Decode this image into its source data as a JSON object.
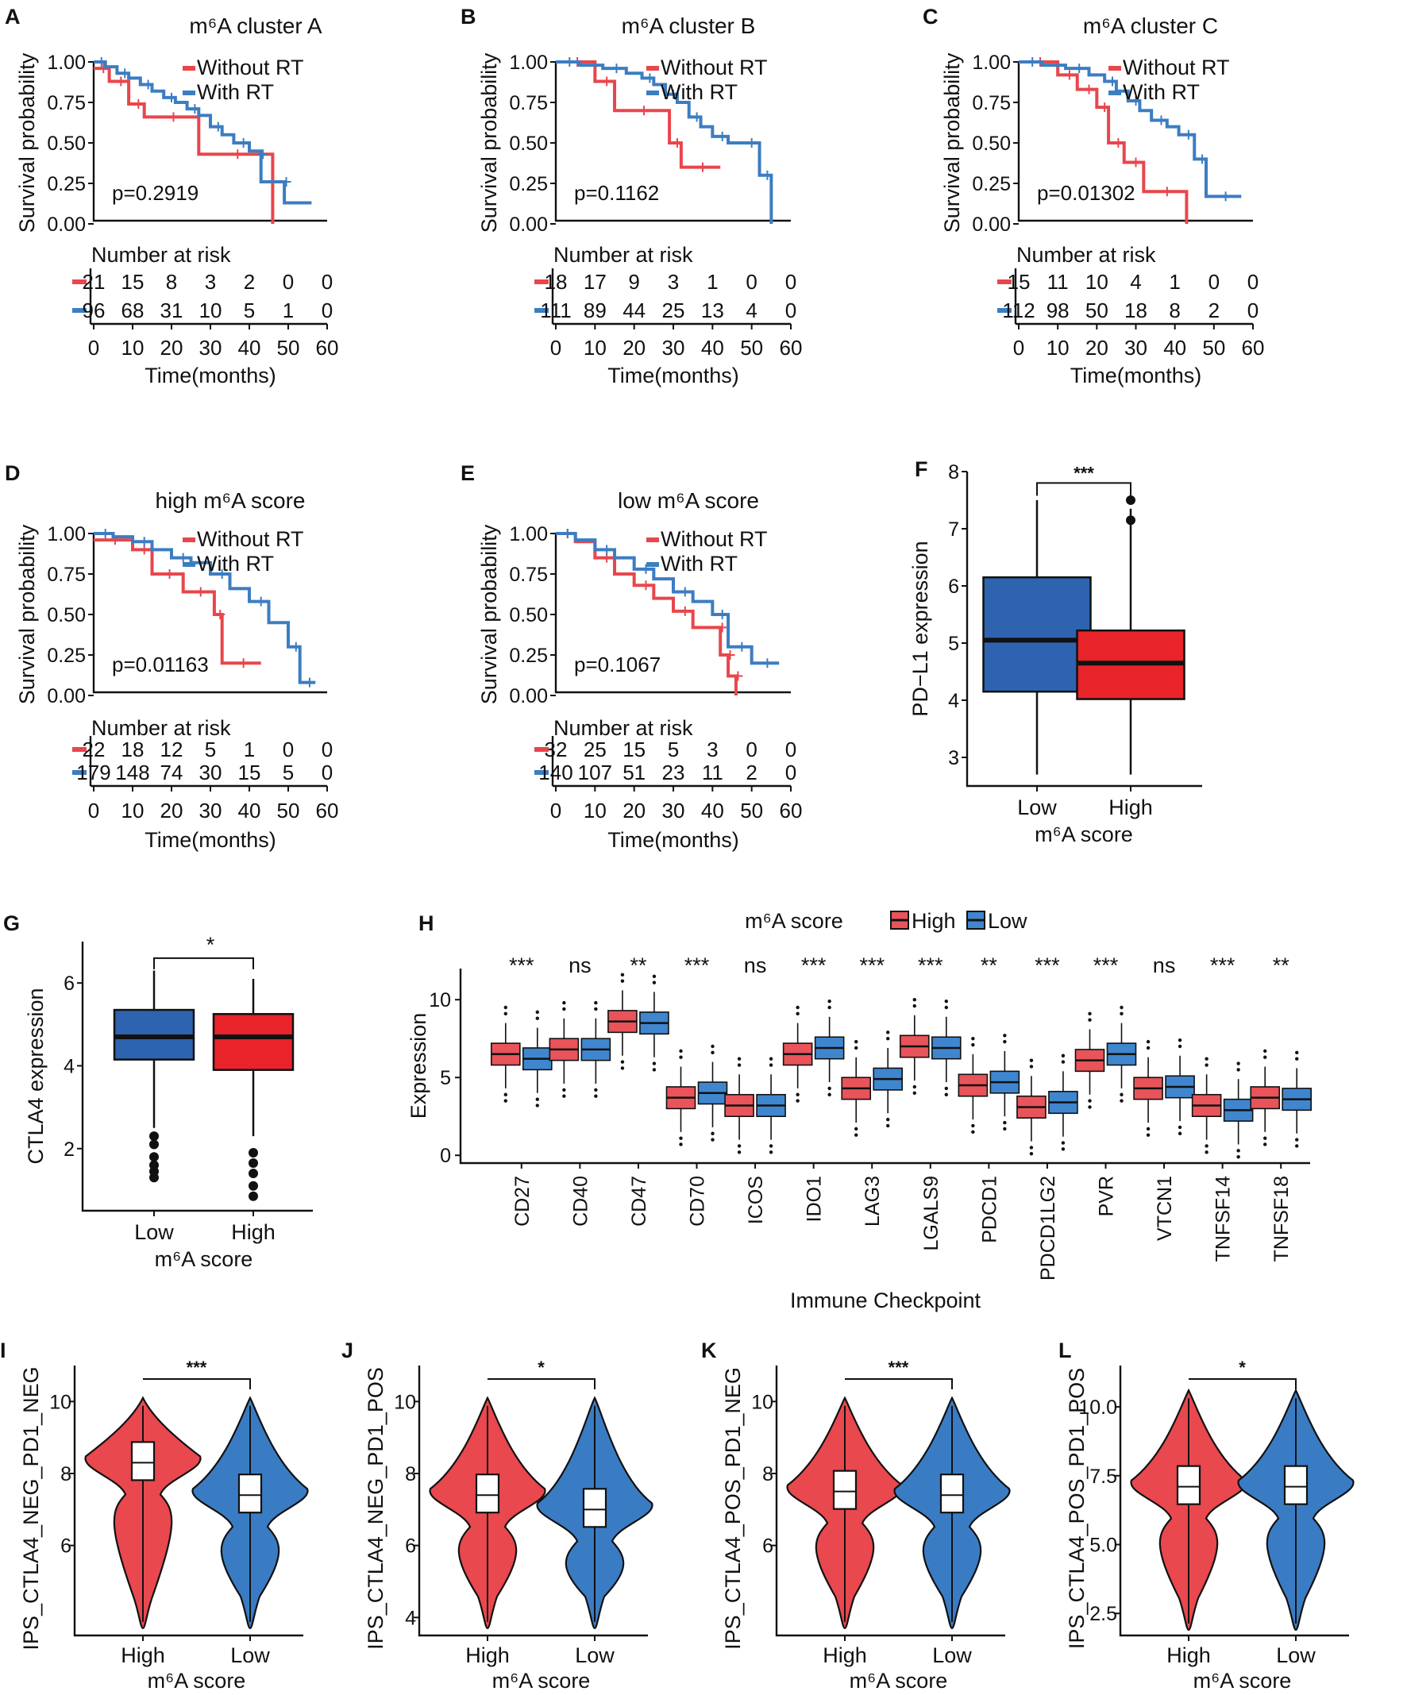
{
  "figure": {
    "colors": {
      "without_rt": "#E8464C",
      "with_rt": "#3C7DC2",
      "box_low": "#2E63B0",
      "box_high": "#E8232A",
      "violin_high": "#E8484E",
      "violin_low": "#3A7CC4",
      "box_hi_h": "#E8545A",
      "box_lo_h": "#3F86CF"
    }
  },
  "chart_data": [
    {
      "panel": "A",
      "type": "line",
      "title": "m⁶A cluster A",
      "ylabel": "Survival probability",
      "xlabel": "Time(months)",
      "yticks": [
        "0.00",
        "0.25",
        "0.50",
        "0.75",
        "1.00"
      ],
      "xticks": [
        "0",
        "10",
        "20",
        "30",
        "40",
        "50",
        "60"
      ],
      "ylim": [
        0,
        1
      ],
      "xlim": [
        0,
        60
      ],
      "pvalue": "p=0.2919",
      "legend": [
        "Without RT",
        "With RT"
      ],
      "risk_title": "Number at risk",
      "risk": [
        [
          "21",
          "15",
          "8",
          "3",
          "2",
          "0",
          "0"
        ],
        [
          "96",
          "68",
          "31",
          "10",
          "5",
          "1",
          "0"
        ]
      ],
      "series": [
        {
          "name": "Without RT",
          "x": [
            0,
            4,
            4,
            9,
            9,
            13,
            13,
            27,
            27,
            46,
            46
          ],
          "y": [
            0.96,
            0.96,
            0.88,
            0.88,
            0.74,
            0.74,
            0.66,
            0.66,
            0.43,
            0.43,
            0
          ]
        },
        {
          "name": "With RT",
          "x": [
            0,
            3,
            6,
            9,
            12,
            15,
            18,
            21,
            24,
            27,
            30,
            33,
            36,
            40,
            43,
            43,
            49,
            49,
            56
          ],
          "y": [
            1,
            0.97,
            0.93,
            0.9,
            0.86,
            0.82,
            0.78,
            0.75,
            0.71,
            0.67,
            0.6,
            0.55,
            0.5,
            0.45,
            0.43,
            0.26,
            0.26,
            0.13,
            0.13
          ]
        }
      ]
    },
    {
      "panel": "B",
      "type": "line",
      "title": "m⁶A cluster B",
      "ylabel": "Survival probability",
      "xlabel": "Time(months)",
      "yticks": [
        "0.00",
        "0.25",
        "0.50",
        "0.75",
        "1.00"
      ],
      "xticks": [
        "0",
        "10",
        "20",
        "30",
        "40",
        "50",
        "60"
      ],
      "ylim": [
        0,
        1
      ],
      "xlim": [
        0,
        60
      ],
      "pvalue": "p=0.1162",
      "legend": [
        "Without RT",
        "With RT"
      ],
      "risk_title": "Number at risk",
      "risk": [
        [
          "18",
          "17",
          "9",
          "3",
          "1",
          "0",
          "0"
        ],
        [
          "111",
          "89",
          "44",
          "25",
          "13",
          "4",
          "0"
        ]
      ],
      "series": [
        {
          "name": "Without RT",
          "x": [
            0,
            10,
            10,
            15,
            15,
            29,
            29,
            32,
            32,
            42
          ],
          "y": [
            1,
            1,
            0.88,
            0.88,
            0.7,
            0.7,
            0.5,
            0.5,
            0.35,
            0.35
          ]
        },
        {
          "name": "With RT",
          "x": [
            0,
            6,
            12,
            18,
            22,
            25,
            28,
            31,
            34,
            37,
            40,
            44,
            47,
            52,
            52,
            55,
            55
          ],
          "y": [
            1,
            0.98,
            0.96,
            0.93,
            0.9,
            0.86,
            0.8,
            0.75,
            0.66,
            0.6,
            0.54,
            0.5,
            0.5,
            0.5,
            0.3,
            0.3,
            0
          ]
        }
      ]
    },
    {
      "panel": "C",
      "type": "line",
      "title": "m⁶A cluster C",
      "ylabel": "Survival probability",
      "xlabel": "Time(months)",
      "yticks": [
        "0.00",
        "0.25",
        "0.50",
        "0.75",
        "1.00"
      ],
      "xticks": [
        "0",
        "10",
        "20",
        "30",
        "40",
        "50",
        "60"
      ],
      "ylim": [
        0,
        1
      ],
      "xlim": [
        0,
        60
      ],
      "pvalue": "p=0.01302",
      "legend": [
        "Without RT",
        "With RT"
      ],
      "risk_title": "Number at risk",
      "risk": [
        [
          "15",
          "11",
          "10",
          "4",
          "1",
          "0",
          "0"
        ],
        [
          "112",
          "98",
          "50",
          "18",
          "8",
          "2",
          "0"
        ]
      ],
      "series": [
        {
          "name": "Without RT",
          "x": [
            0,
            10,
            10,
            15,
            15,
            20,
            20,
            23,
            23,
            27,
            27,
            32,
            32,
            43,
            43
          ],
          "y": [
            1,
            1,
            0.92,
            0.92,
            0.83,
            0.83,
            0.72,
            0.72,
            0.5,
            0.5,
            0.38,
            0.38,
            0.2,
            0.2,
            0
          ]
        },
        {
          "name": "With RT",
          "x": [
            0,
            6,
            12,
            18,
            22,
            25,
            28,
            31,
            34,
            38,
            41,
            45,
            45,
            48,
            48,
            57
          ],
          "y": [
            1,
            0.98,
            0.96,
            0.92,
            0.88,
            0.82,
            0.76,
            0.7,
            0.64,
            0.6,
            0.55,
            0.5,
            0.4,
            0.4,
            0.17,
            0.17
          ]
        }
      ]
    },
    {
      "panel": "D",
      "type": "line",
      "title": "high m⁶A score",
      "ylabel": "Survival probability",
      "xlabel": "Time(months)",
      "yticks": [
        "0.00",
        "0.25",
        "0.50",
        "0.75",
        "1.00"
      ],
      "xticks": [
        "0",
        "10",
        "20",
        "30",
        "40",
        "50",
        "60"
      ],
      "ylim": [
        0,
        1
      ],
      "xlim": [
        0,
        60
      ],
      "pvalue": "p=0.01163",
      "legend": [
        "Without RT",
        "With RT"
      ],
      "risk_title": "Number at risk",
      "risk": [
        [
          "22",
          "18",
          "12",
          "5",
          "1",
          "0",
          "0"
        ],
        [
          "179",
          "148",
          "74",
          "30",
          "15",
          "5",
          "0"
        ]
      ],
      "series": [
        {
          "name": "Without RT",
          "x": [
            0,
            10,
            10,
            15,
            15,
            23,
            23,
            31,
            31,
            33,
            33,
            43
          ],
          "y": [
            0.96,
            0.96,
            0.9,
            0.9,
            0.75,
            0.75,
            0.64,
            0.64,
            0.5,
            0.5,
            0.2,
            0.2
          ]
        },
        {
          "name": "With RT",
          "x": [
            0,
            5,
            10,
            15,
            20,
            25,
            30,
            35,
            40,
            45,
            50,
            53,
            53,
            57
          ],
          "y": [
            1,
            0.98,
            0.95,
            0.9,
            0.85,
            0.82,
            0.75,
            0.66,
            0.58,
            0.45,
            0.3,
            0.2,
            0.08,
            0.08
          ]
        }
      ]
    },
    {
      "panel": "E",
      "type": "line",
      "title": "low m⁶A score",
      "ylabel": "Survival probability",
      "xlabel": "Time(months)",
      "yticks": [
        "0.00",
        "0.25",
        "0.50",
        "0.75",
        "1.00"
      ],
      "xticks": [
        "0",
        "10",
        "20",
        "30",
        "40",
        "50",
        "60"
      ],
      "ylim": [
        0,
        1
      ],
      "xlim": [
        0,
        60
      ],
      "pvalue": "p=0.1067",
      "legend": [
        "Without RT",
        "With RT"
      ],
      "risk_title": "Number at risk",
      "risk": [
        [
          "32",
          "25",
          "15",
          "5",
          "3",
          "0",
          "0"
        ],
        [
          "140",
          "107",
          "51",
          "23",
          "11",
          "2",
          "0"
        ]
      ],
      "series": [
        {
          "name": "Without RT",
          "x": [
            0,
            5,
            10,
            15,
            20,
            25,
            30,
            35,
            42,
            42,
            44,
            44,
            46,
            46
          ],
          "y": [
            1,
            0.95,
            0.85,
            0.75,
            0.68,
            0.6,
            0.52,
            0.42,
            0.42,
            0.25,
            0.25,
            0.12,
            0.12,
            0
          ]
        },
        {
          "name": "With RT",
          "x": [
            0,
            5,
            10,
            15,
            20,
            25,
            30,
            35,
            40,
            44,
            44,
            50,
            50,
            57
          ],
          "y": [
            1,
            0.96,
            0.9,
            0.85,
            0.78,
            0.72,
            0.64,
            0.58,
            0.5,
            0.4,
            0.3,
            0.3,
            0.2,
            0.2
          ]
        }
      ]
    },
    {
      "panel": "F",
      "type": "box",
      "ylabel": "PD−L1 expression",
      "xlabel": "m⁶A score",
      "yticks": [
        "3",
        "4",
        "5",
        "6",
        "7",
        "8"
      ],
      "ylim": [
        2.5,
        8
      ],
      "categories": [
        "Low",
        "High"
      ],
      "significance": "***",
      "boxes": [
        {
          "name": "Low",
          "min": 2.7,
          "q1": 4.15,
          "median": 5.05,
          "q3": 6.15,
          "max": 7.5,
          "outliers": []
        },
        {
          "name": "High",
          "min": 2.7,
          "q1": 4.02,
          "median": 4.65,
          "q3": 5.22,
          "max": 7.35,
          "outliers": [
            7.15,
            7.5
          ]
        }
      ]
    },
    {
      "panel": "G",
      "type": "box",
      "ylabel": "CTLA4 expression",
      "xlabel": "m⁶A score",
      "yticks": [
        "2",
        "4",
        "6"
      ],
      "ylim": [
        0.5,
        7
      ],
      "categories": [
        "Low",
        "High"
      ],
      "significance": "*",
      "boxes": [
        {
          "name": "Low",
          "min": 2.5,
          "q1": 4.15,
          "median": 4.7,
          "q3": 5.35,
          "max": 6.3,
          "outliers": [
            2.3,
            2.1,
            1.8,
            1.6,
            1.45,
            1.3
          ]
        },
        {
          "name": "High",
          "min": 2.3,
          "q1": 3.9,
          "median": 4.7,
          "q3": 5.25,
          "max": 6.1,
          "outliers": [
            1.9,
            1.65,
            1.4,
            1.1,
            0.85
          ]
        }
      ]
    },
    {
      "panel": "H",
      "type": "box",
      "ylabel": "Expression",
      "xlabel": "Immune Checkpoint",
      "yticks": [
        "0",
        "5",
        "10"
      ],
      "ylim": [
        -0.5,
        12
      ],
      "legend_title": "m⁶A score",
      "legend": [
        "High",
        "Low"
      ],
      "categories": [
        "CD27",
        "CD40",
        "CD47",
        "CD70",
        "ICOS",
        "IDO1",
        "LAG3",
        "LGALS9",
        "PDCD1",
        "PDCD1LG2",
        "PVR",
        "VTCN1",
        "TNFSF14",
        "TNFSF18"
      ],
      "significance": [
        "***",
        "ns",
        "**",
        "***",
        "ns",
        "***",
        "***",
        "***",
        "**",
        "***",
        "***",
        "ns",
        "***",
        "**"
      ],
      "series": [
        {
          "name": "High",
          "medians": [
            6.5,
            6.8,
            8.6,
            3.7,
            3.2,
            6.5,
            4.3,
            7.0,
            4.5,
            3.1,
            6.1,
            4.3,
            3.2,
            3.7
          ]
        },
        {
          "name": "Low",
          "medians": [
            6.2,
            6.8,
            8.5,
            4.0,
            3.2,
            6.9,
            4.9,
            6.9,
            4.7,
            3.4,
            6.5,
            4.4,
            2.9,
            3.6
          ]
        }
      ]
    },
    {
      "panel": "I",
      "type": "violin",
      "ylabel": "IPS_CTLA4_NEG_PD1_NEG",
      "xlabel": "m⁶A score",
      "yticks": [
        "6",
        "8",
        "10"
      ],
      "ylim": [
        3.5,
        11
      ],
      "categories": [
        "High",
        "Low"
      ],
      "significance": "***",
      "medians": [
        8.3,
        7.4
      ]
    },
    {
      "panel": "J",
      "type": "violin",
      "ylabel": "IPS_CTLA4_NEG_PD1_POS",
      "xlabel": "m⁶A score",
      "yticks": [
        "4",
        "6",
        "8",
        "10"
      ],
      "ylim": [
        3.5,
        11
      ],
      "categories": [
        "High",
        "Low"
      ],
      "significance": "*",
      "medians": [
        7.4,
        7.0
      ]
    },
    {
      "panel": "K",
      "type": "violin",
      "ylabel": "IPS_CTLA4_POS_PD1_NEG",
      "xlabel": "m⁶A score",
      "yticks": [
        "6",
        "8",
        "10"
      ],
      "ylim": [
        3.5,
        11
      ],
      "categories": [
        "High",
        "Low"
      ],
      "significance": "***",
      "medians": [
        7.5,
        7.4
      ]
    },
    {
      "panel": "L",
      "type": "violin",
      "ylabel": "IPS_CTLA4_POS_PD1_POS",
      "xlabel": "m⁶A score",
      "yticks": [
        "2.5",
        "5.0",
        "7.5",
        "10.0"
      ],
      "ylim": [
        1.7,
        11.5
      ],
      "categories": [
        "High",
        "Low"
      ],
      "significance": "*",
      "medians": [
        7.1,
        7.1
      ]
    }
  ]
}
